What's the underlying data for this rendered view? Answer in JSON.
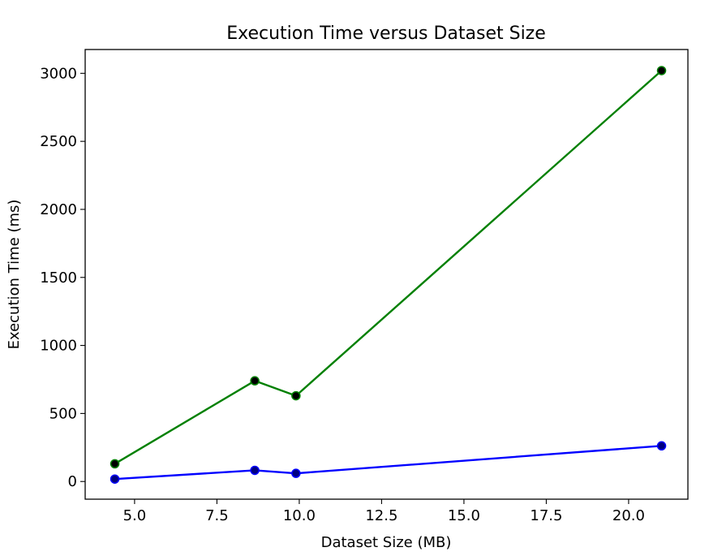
{
  "chart_data": {
    "type": "line",
    "title": "Execution Time versus Dataset Size",
    "xlabel": "Dataset Size (MB)",
    "ylabel": "Execution Time (ms)",
    "xlim": [
      3.5,
      21.8
    ],
    "ylim": [
      -130,
      3175
    ],
    "xticks": [
      5.0,
      7.5,
      10.0,
      12.5,
      15.0,
      17.5,
      20.0
    ],
    "xtick_labels": [
      "5.0",
      "7.5",
      "10.0",
      "12.5",
      "15.0",
      "17.5",
      "20.0"
    ],
    "yticks": [
      0,
      500,
      1000,
      1500,
      2000,
      2500,
      3000
    ],
    "ytick_labels": [
      "0",
      "500",
      "1000",
      "1500",
      "2000",
      "2500",
      "3000"
    ],
    "grid": false,
    "x": [
      4.4,
      8.65,
      9.9,
      21.0
    ],
    "series": [
      {
        "values": [
          130,
          740,
          630,
          3020
        ],
        "color": "#008000",
        "marker_color": "#000000"
      },
      {
        "values": [
          18,
          82,
          60,
          262
        ],
        "color": "#0000ff",
        "marker_color": "#000080"
      }
    ]
  }
}
